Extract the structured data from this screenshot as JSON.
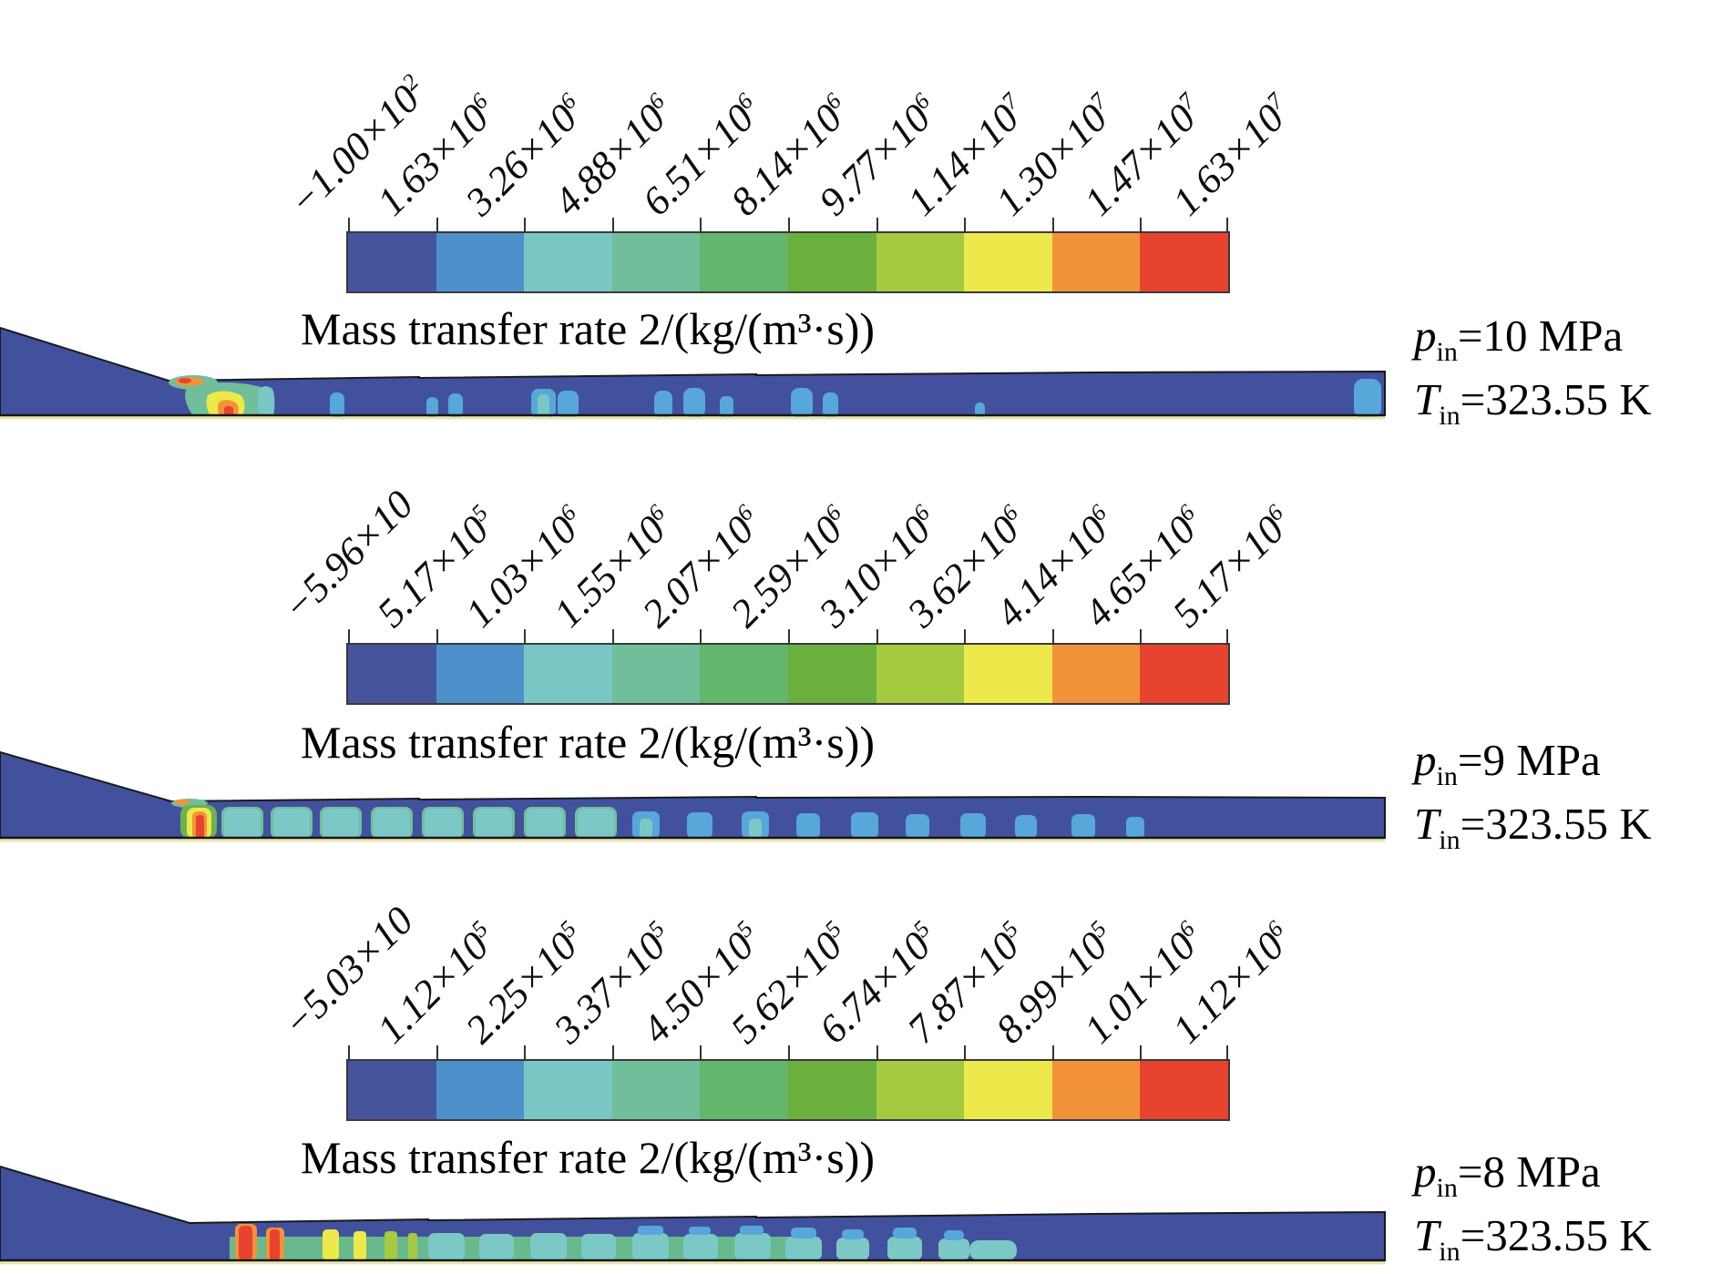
{
  "figure": {
    "background": "#ffffff",
    "colorbar_colors": [
      "#46549E",
      "#4E90C9",
      "#79C7C5",
      "#70BF9A",
      "#63B76C",
      "#6BAF3D",
      "#A5C940",
      "#EDE94B",
      "#F2933B",
      "#E8432F"
    ],
    "panels": [
      {
        "name": "pin-10MPa",
        "tick_labels": [
          "−1.00×10^2",
          "1.63×10^6",
          "3.26×10^6",
          "4.88×10^6",
          "6.51×10^6",
          "8.14×10^6",
          "9.77×10^6",
          "1.14×10^7",
          "1.30×10^7",
          "1.47×10^7",
          "1.63×10^7"
        ],
        "title": "Mass transfer rate 2/(kg/(m³·s))",
        "pressure": {
          "symbol": "p",
          "sub": "in",
          "rest": "=10 MPa"
        },
        "temperature": {
          "symbol": "T",
          "sub": "in",
          "rest": "=323.55 K"
        }
      },
      {
        "name": "pin-9MPa",
        "tick_labels": [
          "−5.96×10",
          "5.17×10^5",
          "1.03×10^6",
          "1.55×10^6",
          "2.07×10^6",
          "2.59×10^6",
          "3.10×10^6",
          "3.62×10^6",
          "4.14×10^6",
          "4.65×10^6",
          "5.17×10^6"
        ],
        "title": "Mass transfer rate 2/(kg/(m³·s))",
        "pressure": {
          "symbol": "p",
          "sub": "in",
          "rest": "=9 MPa"
        },
        "temperature": {
          "symbol": "T",
          "sub": "in",
          "rest": "=323.55 K"
        }
      },
      {
        "name": "pin-8MPa",
        "tick_labels": [
          "−5.03×10",
          "1.12×10^5",
          "2.25×10^5",
          "3.37×10^5",
          "4.50×10^5",
          "5.62×10^5",
          "6.74×10^5",
          "7.87×10^5",
          "8.99×10^5",
          "1.01×10^6",
          "1.12×10^6"
        ],
        "title": "Mass transfer rate 2/(kg/(m³·s))",
        "pressure": {
          "symbol": "p",
          "sub": "in",
          "rest": "=8 MPa"
        },
        "temperature": {
          "symbol": "T",
          "sub": "in",
          "rest": "=323.55 K"
        }
      }
    ]
  },
  "chart_data": [
    {
      "type": "heatmap",
      "title": "Mass transfer rate 2/(kg/(m³·s))",
      "legend_position": "top",
      "colorbar_orientation": "horizontal",
      "colorbar_tick_labels": [
        "−1.00×10²",
        "1.63×10⁶",
        "3.26×10⁶",
        "4.88×10⁶",
        "6.51×10⁶",
        "8.14×10⁶",
        "9.77×10⁶",
        "1.14×10⁷",
        "1.30×10⁷",
        "1.47×10⁷",
        "1.63×10⁷"
      ],
      "colorbar_tick_values": [
        -100,
        1630000,
        3260000,
        4880000,
        6510000,
        8140000,
        9770000,
        11400000,
        13000000,
        14700000,
        16300000
      ],
      "colorbar_colors": [
        "#46549E",
        "#4E90C9",
        "#79C7C5",
        "#70BF9A",
        "#63B76C",
        "#6BAF3D",
        "#A5C940",
        "#EDE94B",
        "#F2933B",
        "#E8432F"
      ],
      "conditions": {
        "p_in": "10 MPa",
        "T_in": "323.55 K"
      }
    },
    {
      "type": "heatmap",
      "title": "Mass transfer rate 2/(kg/(m³·s))",
      "legend_position": "top",
      "colorbar_orientation": "horizontal",
      "colorbar_tick_labels": [
        "−5.96×10",
        "5.17×10⁵",
        "1.03×10⁶",
        "1.55×10⁶",
        "2.07×10⁶",
        "2.59×10⁶",
        "3.10×10⁶",
        "3.62×10⁶",
        "4.14×10⁶",
        "4.65×10⁶",
        "5.17×10⁶"
      ],
      "colorbar_tick_values": [
        -59.6,
        517000,
        1030000,
        1550000,
        2070000,
        2590000,
        3100000,
        3620000,
        4140000,
        4650000,
        5170000
      ],
      "colorbar_colors": [
        "#46549E",
        "#4E90C9",
        "#79C7C5",
        "#70BF9A",
        "#63B76C",
        "#6BAF3D",
        "#A5C940",
        "#EDE94B",
        "#F2933B",
        "#E8432F"
      ],
      "conditions": {
        "p_in": "9 MPa",
        "T_in": "323.55 K"
      }
    },
    {
      "type": "heatmap",
      "title": "Mass transfer rate 2/(kg/(m³·s))",
      "legend_position": "top",
      "colorbar_orientation": "horizontal",
      "colorbar_tick_labels": [
        "−5.03×10",
        "1.12×10⁵",
        "2.25×10⁵",
        "3.37×10⁵",
        "4.50×10⁵",
        "5.62×10⁵",
        "6.74×10⁵",
        "7.87×10⁵",
        "8.99×10⁵",
        "1.01×10⁶",
        "1.12×10⁶"
      ],
      "colorbar_tick_values": [
        -50.3,
        112000,
        225000,
        337000,
        450000,
        562000,
        674000,
        787000,
        899000,
        1010000,
        1120000
      ],
      "colorbar_colors": [
        "#46549E",
        "#4E90C9",
        "#79C7C5",
        "#70BF9A",
        "#63B76C",
        "#6BAF3D",
        "#A5C940",
        "#EDE94B",
        "#F2933B",
        "#E8432F"
      ],
      "conditions": {
        "p_in": "8 MPa",
        "T_in": "323.55 K"
      }
    }
  ]
}
